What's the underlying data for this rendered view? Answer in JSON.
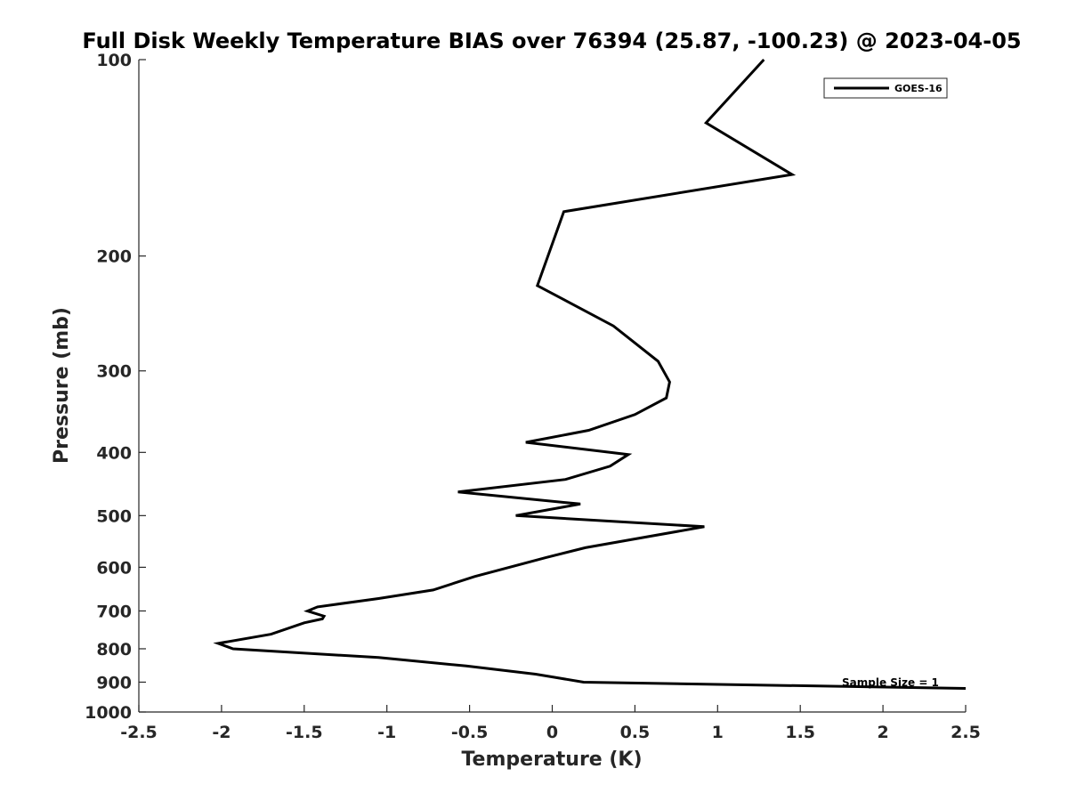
{
  "chart_data": {
    "type": "line",
    "title": "Full Disk Weekly Temperature BIAS over 76394 (25.87, -100.23) @ 2023-04-05",
    "xlabel": "Temperature (K)",
    "ylabel": "Pressure (mb)",
    "xlim": [
      -2.5,
      2.5
    ],
    "ylim": [
      100,
      1000
    ],
    "y_scale": "log",
    "y_reversed": true,
    "grid": false,
    "legend_position": "top-right",
    "x_ticks": [
      -2.5,
      -2,
      -1.5,
      -1,
      -0.5,
      0,
      0.5,
      1,
      1.5,
      2,
      2.5
    ],
    "x_tick_labels": [
      "-2.5",
      "-2",
      "-1.5",
      "-1",
      "-0.5",
      "0",
      "0.5",
      "1",
      "1.5",
      "2",
      "2.5"
    ],
    "y_ticks": [
      100,
      200,
      300,
      400,
      500,
      600,
      700,
      800,
      900,
      1000
    ],
    "y_tick_labels": [
      "100",
      "200",
      "300",
      "400",
      "500",
      "600",
      "700",
      "800",
      "900",
      "1000"
    ],
    "series": [
      {
        "name": "GOES-16",
        "color": "#000000",
        "x": [
          1.28,
          0.93,
          1.45,
          0.07,
          -0.09,
          0.37,
          0.64,
          0.71,
          0.69,
          0.5,
          0.22,
          -0.16,
          0.46,
          0.35,
          0.08,
          -0.57,
          0.17,
          -0.22,
          0.92,
          0.2,
          -0.04,
          -0.47,
          -0.72,
          -1.05,
          -1.42,
          -1.48,
          -1.38,
          -1.39,
          -1.5,
          -1.7,
          -2.02,
          -1.93,
          -1.05,
          -0.52,
          -0.1,
          0.19,
          2.5
        ],
        "y": [
          100,
          125,
          150,
          171,
          222,
          256,
          290,
          312,
          330,
          350,
          370,
          386,
          403,
          420,
          440,
          460,
          480,
          500,
          520,
          560,
          580,
          620,
          650,
          670,
          690,
          700,
          713,
          720,
          730,
          760,
          785,
          800,
          825,
          850,
          875,
          900,
          920
        ]
      }
    ],
    "annotations": [
      "Sample Size = 1"
    ]
  }
}
